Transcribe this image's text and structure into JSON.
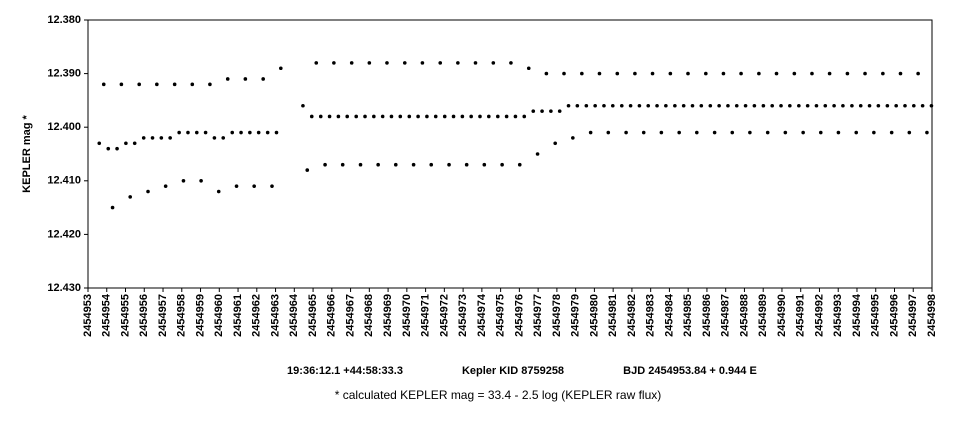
{
  "chart_data": {
    "type": "scatter",
    "y_label": "KEPLER mag *",
    "annotations": [
      "19:36:12.1 +44:58:33.3",
      "Kepler KID 8759258",
      "BJD 2454953.84 + 0.944 E"
    ],
    "footnote": "* calculated KEPLER mag = 33.4 - 2.5 log (KEPLER raw flux)",
    "color": "#000000",
    "y_inverted": true,
    "xlim": [
      2454953,
      2454998
    ],
    "ylim": [
      12.38,
      12.43
    ],
    "xticks": [
      2454953,
      2454954,
      2454955,
      2454956,
      2454957,
      2454958,
      2454959,
      2454960,
      2454961,
      2454962,
      2454963,
      2454964,
      2454965,
      2454966,
      2454967,
      2454968,
      2454969,
      2454970,
      2454971,
      2454972,
      2454973,
      2454974,
      2454975,
      2454976,
      2454977,
      2454978,
      2454979,
      2454980,
      2454981,
      2454982,
      2454983,
      2454984,
      2454985,
      2454986,
      2454987,
      2454988,
      2454989,
      2454990,
      2454991,
      2454992,
      2454993,
      2454994,
      2454995,
      2454996,
      2454997,
      2454998
    ],
    "yticks": [
      {
        "value": 12.38,
        "label": "12.380"
      },
      {
        "value": 12.39,
        "label": "12.390"
      },
      {
        "value": 12.4,
        "label": "12.400"
      },
      {
        "value": 12.41,
        "label": "12.410"
      },
      {
        "value": 12.42,
        "label": "12.420"
      },
      {
        "value": 12.43,
        "label": "12.430"
      }
    ],
    "x": [
      2454953.6,
      2454953.84,
      2454954.08,
      2454954.31,
      2454954.55,
      2454954.78,
      2454955.02,
      2454955.25,
      2454955.49,
      2454955.73,
      2454955.97,
      2454956.2,
      2454956.44,
      2454956.67,
      2454956.91,
      2454957.14,
      2454957.38,
      2454957.62,
      2454957.86,
      2454958.09,
      2454958.33,
      2454958.56,
      2454958.8,
      2454959.03,
      2454959.27,
      2454959.5,
      2454959.74,
      2454959.97,
      2454960.21,
      2454960.45,
      2454960.69,
      2454960.92,
      2454961.16,
      2454961.39,
      2454961.63,
      2454961.86,
      2454962.1,
      2454962.34,
      2454962.58,
      2454962.81,
      2454963.05,
      2454963.28,
      2454964.46,
      2454964.69,
      2454964.93,
      2454965.17,
      2454965.41,
      2454965.64,
      2454965.88,
      2454966.11,
      2454966.35,
      2454966.58,
      2454966.82,
      2454967.06,
      2454967.3,
      2454967.53,
      2454967.77,
      2454968.0,
      2454968.24,
      2454968.47,
      2454968.71,
      2454968.94,
      2454969.18,
      2454969.41,
      2454969.65,
      2454969.89,
      2454970.13,
      2454970.36,
      2454970.6,
      2454970.83,
      2454971.07,
      2454971.3,
      2454971.54,
      2454971.78,
      2454972.02,
      2454972.25,
      2454972.49,
      2454972.72,
      2454972.96,
      2454973.19,
      2454973.43,
      2454973.66,
      2454973.9,
      2454974.13,
      2454974.37,
      2454974.61,
      2454974.85,
      2454975.08,
      2454975.32,
      2454975.55,
      2454975.79,
      2454976.02,
      2454976.26,
      2454976.5,
      2454976.74,
      2454976.97,
      2454977.21,
      2454977.44,
      2454977.68,
      2454977.91,
      2454978.15,
      2454978.38,
      2454978.62,
      2454978.85,
      2454979.09,
      2454979.33,
      2454979.57,
      2454979.8,
      2454980.04,
      2454980.27,
      2454980.51,
      2454980.74,
      2454980.98,
      2454981.22,
      2454981.46,
      2454981.69,
      2454981.93,
      2454982.16,
      2454982.4,
      2454982.63,
      2454982.87,
      2454983.1,
      2454983.34,
      2454983.57,
      2454983.81,
      2454984.05,
      2454984.29,
      2454984.52,
      2454984.76,
      2454984.99,
      2454985.23,
      2454985.46,
      2454985.7,
      2454985.94,
      2454986.18,
      2454986.41,
      2454986.65,
      2454986.88,
      2454987.12,
      2454987.35,
      2454987.59,
      2454987.82,
      2454988.06,
      2454988.29,
      2454988.53,
      2454988.77,
      2454989.01,
      2454989.24,
      2454989.48,
      2454989.71,
      2454989.95,
      2454990.18,
      2454990.42,
      2454990.66,
      2454990.9,
      2454991.13,
      2454991.37,
      2454991.6,
      2454991.84,
      2454992.07,
      2454992.31,
      2454992.54,
      2454992.78,
      2454993.01,
      2454993.25,
      2454993.49,
      2454993.73,
      2454993.96,
      2454994.2,
      2454994.43,
      2454994.67,
      2454994.9,
      2454995.14,
      2454995.38,
      2454995.62,
      2454995.85,
      2454996.09,
      2454996.32,
      2454996.56,
      2454996.79,
      2454997.03,
      2454997.26,
      2454997.5,
      2454997.73,
      2454997.97
    ],
    "values": [
      12.403,
      12.392,
      12.404,
      12.415,
      12.404,
      12.392,
      12.403,
      12.413,
      12.403,
      12.392,
      12.402,
      12.412,
      12.402,
      12.392,
      12.402,
      12.411,
      12.402,
      12.392,
      12.401,
      12.41,
      12.401,
      12.392,
      12.401,
      12.41,
      12.401,
      12.392,
      12.402,
      12.412,
      12.402,
      12.391,
      12.401,
      12.411,
      12.401,
      12.391,
      12.401,
      12.411,
      12.401,
      12.391,
      12.401,
      12.411,
      12.401,
      12.389,
      12.396,
      12.408,
      12.398,
      12.388,
      12.398,
      12.407,
      12.398,
      12.388,
      12.398,
      12.407,
      12.398,
      12.388,
      12.398,
      12.407,
      12.398,
      12.388,
      12.398,
      12.407,
      12.398,
      12.388,
      12.398,
      12.407,
      12.398,
      12.388,
      12.398,
      12.407,
      12.398,
      12.388,
      12.398,
      12.407,
      12.398,
      12.388,
      12.398,
      12.407,
      12.398,
      12.388,
      12.398,
      12.407,
      12.398,
      12.388,
      12.398,
      12.407,
      12.398,
      12.388,
      12.398,
      12.407,
      12.398,
      12.388,
      12.398,
      12.407,
      12.398,
      12.389,
      12.397,
      12.405,
      12.397,
      12.39,
      12.397,
      12.403,
      12.397,
      12.39,
      12.396,
      12.402,
      12.396,
      12.39,
      12.396,
      12.401,
      12.396,
      12.39,
      12.396,
      12.401,
      12.396,
      12.39,
      12.396,
      12.401,
      12.396,
      12.39,
      12.396,
      12.401,
      12.396,
      12.39,
      12.396,
      12.401,
      12.396,
      12.39,
      12.396,
      12.401,
      12.396,
      12.39,
      12.396,
      12.401,
      12.396,
      12.39,
      12.396,
      12.401,
      12.396,
      12.39,
      12.396,
      12.401,
      12.396,
      12.39,
      12.396,
      12.401,
      12.396,
      12.39,
      12.396,
      12.401,
      12.396,
      12.39,
      12.396,
      12.401,
      12.396,
      12.39,
      12.396,
      12.401,
      12.396,
      12.39,
      12.396,
      12.401,
      12.396,
      12.39,
      12.396,
      12.401,
      12.396,
      12.39,
      12.396,
      12.401,
      12.396,
      12.39,
      12.396,
      12.401,
      12.396,
      12.39,
      12.396,
      12.401,
      12.396,
      12.39,
      12.396,
      12.401,
      12.396,
      12.39,
      12.396,
      12.401,
      12.396
    ]
  }
}
